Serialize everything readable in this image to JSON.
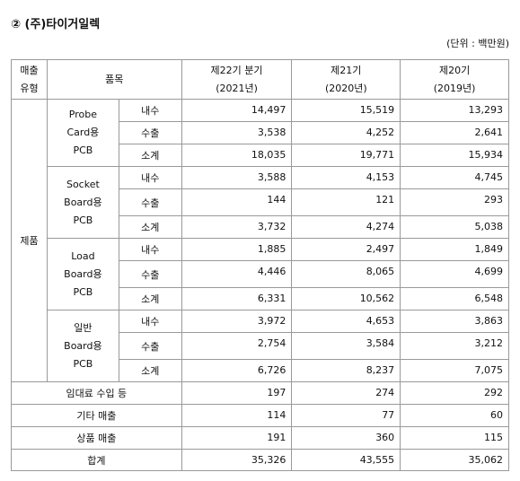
{
  "title": "② (주)타이거일렉",
  "unit": "(단위 : 백만원)",
  "table": {
    "header": {
      "type": [
        "매출",
        "유형"
      ],
      "item": "품목",
      "periods": [
        [
          "제22기 분기",
          "(2021년)"
        ],
        [
          "제21기",
          "(2020년)"
        ],
        [
          "제20기",
          "(2019년)"
        ]
      ]
    },
    "category": "제품",
    "groups": [
      {
        "name": [
          "Probe",
          "Card용",
          "PCB"
        ],
        "rows": [
          {
            "kind": "내수",
            "values": [
              "14,497",
              "15,519",
              "13,293"
            ]
          },
          {
            "kind": "수출",
            "values": [
              "3,538",
              "4,252",
              "2,641"
            ]
          },
          {
            "kind": "소계",
            "values": [
              "18,035",
              "19,771",
              "15,934"
            ]
          }
        ]
      },
      {
        "name": [
          "Socket",
          "Board용",
          "PCB"
        ],
        "rows": [
          {
            "kind": "내수",
            "values": [
              "3,588",
              "4,153",
              "4,745"
            ]
          },
          {
            "kind": "수출",
            "values": [
              "144",
              "121",
              "293"
            ]
          },
          {
            "kind": "소계",
            "values": [
              "3,732",
              "4,274",
              "5,038"
            ]
          }
        ]
      },
      {
        "name": [
          "Load",
          "Board용",
          "PCB"
        ],
        "rows": [
          {
            "kind": "내수",
            "values": [
              "1,885",
              "2,497",
              "1,849"
            ]
          },
          {
            "kind": "수출",
            "values": [
              "4,446",
              "8,065",
              "4,699"
            ]
          },
          {
            "kind": "소계",
            "values": [
              "6,331",
              "10,562",
              "6,548"
            ]
          }
        ]
      },
      {
        "name": [
          "일반",
          "Board용",
          "PCB"
        ],
        "rows": [
          {
            "kind": "내수",
            "values": [
              "3,972",
              "4,653",
              "3,863"
            ]
          },
          {
            "kind": "수출",
            "values": [
              "2,754",
              "3,584",
              "3,212"
            ]
          },
          {
            "kind": "소계",
            "values": [
              "6,726",
              "8,237",
              "7,075"
            ]
          }
        ]
      }
    ],
    "others": [
      {
        "label": "임대료 수입 등",
        "values": [
          "197",
          "274",
          "292"
        ]
      },
      {
        "label": "기타 매출",
        "values": [
          "114",
          "77",
          "60"
        ]
      },
      {
        "label": "상품 매출",
        "values": [
          "191",
          "360",
          "115"
        ]
      },
      {
        "label": "합계",
        "values": [
          "35,326",
          "43,555",
          "35,062"
        ]
      }
    ]
  }
}
